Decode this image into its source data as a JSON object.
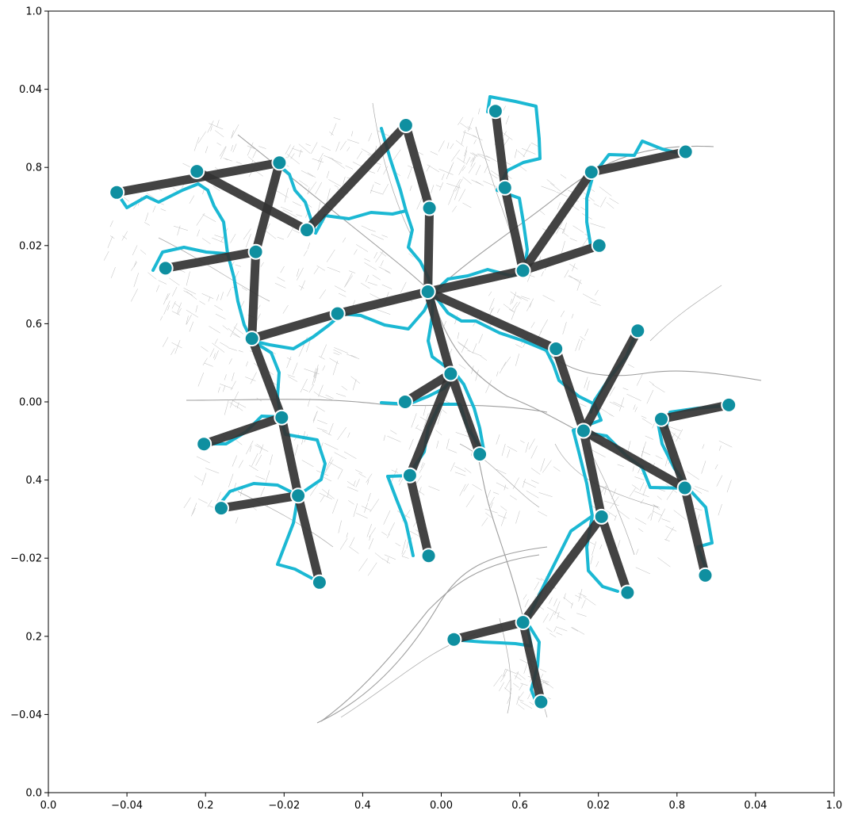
{
  "axes": {
    "left_ticks_outer": [
      "0.0",
      "0.2",
      "0.4",
      "0.6",
      "0.8",
      "1.0"
    ],
    "left_ticks_inner": [
      "−0.04",
      "−0.02",
      "0.00",
      "0.02",
      "0.04"
    ],
    "bottom_ticks_outer": [
      "0.0",
      "0.2",
      "0.4",
      "0.6",
      "0.8",
      "1.0"
    ],
    "bottom_ticks_inner": [
      "−0.04",
      "−0.02",
      "0.00",
      "0.02",
      "0.04"
    ]
  },
  "colors": {
    "road": "#a8a8a8",
    "route": "#1bb8d3",
    "edge": "#333333",
    "node": "#0f8fa0"
  },
  "chart_data": {
    "type": "scatter",
    "description_type": "network graph over street map",
    "xlim": [
      -0.05,
      0.05
    ],
    "ylim": [
      -0.05,
      0.05
    ],
    "grid": false,
    "nodes": [
      {
        "id": 0,
        "x": -0.0413,
        "y": 0.0268
      },
      {
        "id": 1,
        "x": -0.0206,
        "y": 0.0306
      },
      {
        "id": 2,
        "x": -0.0045,
        "y": 0.0354
      },
      {
        "id": 3,
        "x": 0.0069,
        "y": 0.0372
      },
      {
        "id": 4,
        "x": -0.0311,
        "y": 0.0295
      },
      {
        "id": 5,
        "x": -0.0236,
        "y": 0.0192
      },
      {
        "id": 6,
        "x": -0.0351,
        "y": 0.0171
      },
      {
        "id": 7,
        "x": -0.0171,
        "y": 0.022
      },
      {
        "id": 8,
        "x": -0.0015,
        "y": 0.0248
      },
      {
        "id": 9,
        "x": 0.0081,
        "y": 0.0274
      },
      {
        "id": 10,
        "x": 0.0191,
        "y": 0.0294
      },
      {
        "id": 11,
        "x": 0.0311,
        "y": 0.032
      },
      {
        "id": 12,
        "x": 0.0201,
        "y": 0.02
      },
      {
        "id": 13,
        "x": 0.0104,
        "y": 0.0168
      },
      {
        "id": 14,
        "x": -0.0017,
        "y": 0.0141
      },
      {
        "id": 15,
        "x": -0.0132,
        "y": 0.0113
      },
      {
        "id": 16,
        "x": -0.0241,
        "y": 0.0081
      },
      {
        "id": 17,
        "x": 0.0146,
        "y": 0.0068
      },
      {
        "id": 18,
        "x": 0.025,
        "y": 0.0091
      },
      {
        "id": 19,
        "x": 0.0012,
        "y": 0.0036
      },
      {
        "id": 20,
        "x": -0.0046,
        "y": 0.0
      },
      {
        "id": 21,
        "x": -0.0203,
        "y": -0.002
      },
      {
        "id": 22,
        "x": -0.0302,
        "y": -0.0054
      },
      {
        "id": 23,
        "x": 0.0049,
        "y": -0.0067
      },
      {
        "id": 24,
        "x": 0.0181,
        "y": -0.0037
      },
      {
        "id": 25,
        "x": 0.028,
        "y": -0.0022
      },
      {
        "id": 26,
        "x": 0.0366,
        "y": -0.0004
      },
      {
        "id": 27,
        "x": 0.031,
        "y": -0.011
      },
      {
        "id": 28,
        "x": -0.0182,
        "y": -0.012
      },
      {
        "id": 29,
        "x": -0.028,
        "y": -0.0136
      },
      {
        "id": 30,
        "x": -0.004,
        "y": -0.0094
      },
      {
        "id": 31,
        "x": 0.0204,
        "y": -0.0147
      },
      {
        "id": 32,
        "x": -0.0016,
        "y": -0.0197
      },
      {
        "id": 33,
        "x": 0.0336,
        "y": -0.0222
      },
      {
        "id": 34,
        "x": -0.0155,
        "y": -0.0231
      },
      {
        "id": 35,
        "x": 0.0237,
        "y": -0.0244
      },
      {
        "id": 36,
        "x": 0.0104,
        "y": -0.0282
      },
      {
        "id": 37,
        "x": 0.0016,
        "y": -0.0304
      },
      {
        "id": 38,
        "x": 0.0127,
        "y": -0.0384
      }
    ],
    "edges": [
      [
        0,
        1
      ],
      [
        1,
        5
      ],
      [
        4,
        7
      ],
      [
        7,
        2
      ],
      [
        2,
        8
      ],
      [
        8,
        14
      ],
      [
        3,
        9
      ],
      [
        9,
        13
      ],
      [
        10,
        13
      ],
      [
        10,
        11
      ],
      [
        12,
        13
      ],
      [
        13,
        14
      ],
      [
        14,
        15
      ],
      [
        15,
        16
      ],
      [
        6,
        5
      ],
      [
        5,
        16
      ],
      [
        16,
        21
      ],
      [
        14,
        19
      ],
      [
        14,
        17
      ],
      [
        19,
        20
      ],
      [
        19,
        23
      ],
      [
        19,
        30
      ],
      [
        30,
        32
      ],
      [
        21,
        22
      ],
      [
        21,
        28
      ],
      [
        28,
        29
      ],
      [
        28,
        34
      ],
      [
        17,
        24
      ],
      [
        24,
        18
      ],
      [
        24,
        27
      ],
      [
        24,
        31
      ],
      [
        25,
        26
      ],
      [
        25,
        27
      ],
      [
        27,
        33
      ],
      [
        31,
        35
      ],
      [
        31,
        36
      ],
      [
        36,
        37
      ],
      [
        36,
        38
      ]
    ]
  }
}
